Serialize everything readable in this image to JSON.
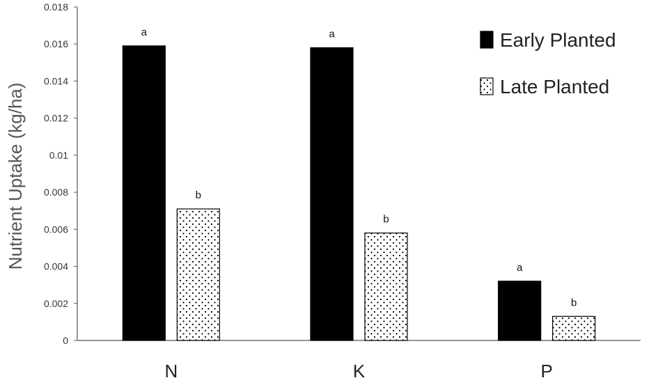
{
  "chart_data": {
    "type": "bar",
    "title": "",
    "xlabel": "",
    "ylabel": "Nutrient Uptake (kg/ha)",
    "ylim": [
      0,
      0.018
    ],
    "yticks": [
      "0",
      "0.002",
      "0.004",
      "0.006",
      "0.008",
      "0.01",
      "0.012",
      "0.014",
      "0.016",
      "0.018"
    ],
    "categories": [
      "N",
      "K",
      "P"
    ],
    "grid": false,
    "legend_position": "top-right",
    "series": [
      {
        "name": "Early Planted",
        "fill": "#000000",
        "pattern": "solid",
        "values": [
          0.0159,
          0.0158,
          0.0032
        ],
        "labels": [
          "a",
          "a",
          "a"
        ]
      },
      {
        "name": "Late Planted",
        "fill": "#ffffff",
        "pattern": "dots",
        "values": [
          0.0071,
          0.0058,
          0.0013
        ],
        "labels": [
          "b",
          "b",
          "b"
        ]
      }
    ]
  }
}
